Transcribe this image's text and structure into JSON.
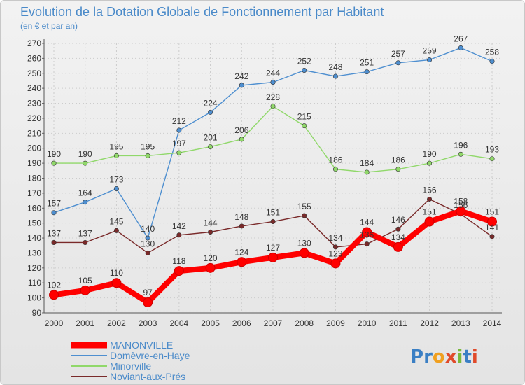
{
  "chart_data": {
    "type": "line",
    "title": "Evolution de la Dotation Globale de Fonctionnement par Habitant",
    "subtitle": "(en € et par an)",
    "xlabel": "",
    "ylabel": "",
    "categories": [
      "2000",
      "2001",
      "2002",
      "2003",
      "2004",
      "2005",
      "2006",
      "2007",
      "2008",
      "2009",
      "2010",
      "2011",
      "2012",
      "2013",
      "2014"
    ],
    "yticks": [
      90,
      100,
      110,
      120,
      130,
      140,
      150,
      160,
      170,
      180,
      190,
      200,
      210,
      220,
      230,
      240,
      250,
      260,
      270
    ],
    "ylim": [
      90,
      270
    ],
    "grid": true,
    "legend_position": "bottom-left",
    "series": [
      {
        "name": "MANONVILLE",
        "color": "#ff0000",
        "values": [
          102,
          105,
          110,
          97,
          118,
          120,
          124,
          127,
          130,
          123,
          144,
          134,
          151,
          158,
          151
        ]
      },
      {
        "name": "Domèvre-en-Haye",
        "color": "#4e8fd0",
        "values": [
          157,
          164,
          173,
          140,
          212,
          224,
          242,
          244,
          252,
          248,
          251,
          257,
          259,
          267,
          258
        ]
      },
      {
        "name": "Minorville",
        "color": "#90d86a",
        "values": [
          190,
          190,
          195,
          195,
          197,
          201,
          206,
          228,
          215,
          186,
          184,
          186,
          190,
          196,
          193
        ]
      },
      {
        "name": "Noviant-aux-Prés",
        "color": "#7a2a2a",
        "values": [
          137,
          137,
          145,
          130,
          142,
          144,
          148,
          151,
          155,
          134,
          136,
          146,
          166,
          156,
          141
        ]
      }
    ]
  },
  "logo": {
    "text": "Proxiti"
  }
}
